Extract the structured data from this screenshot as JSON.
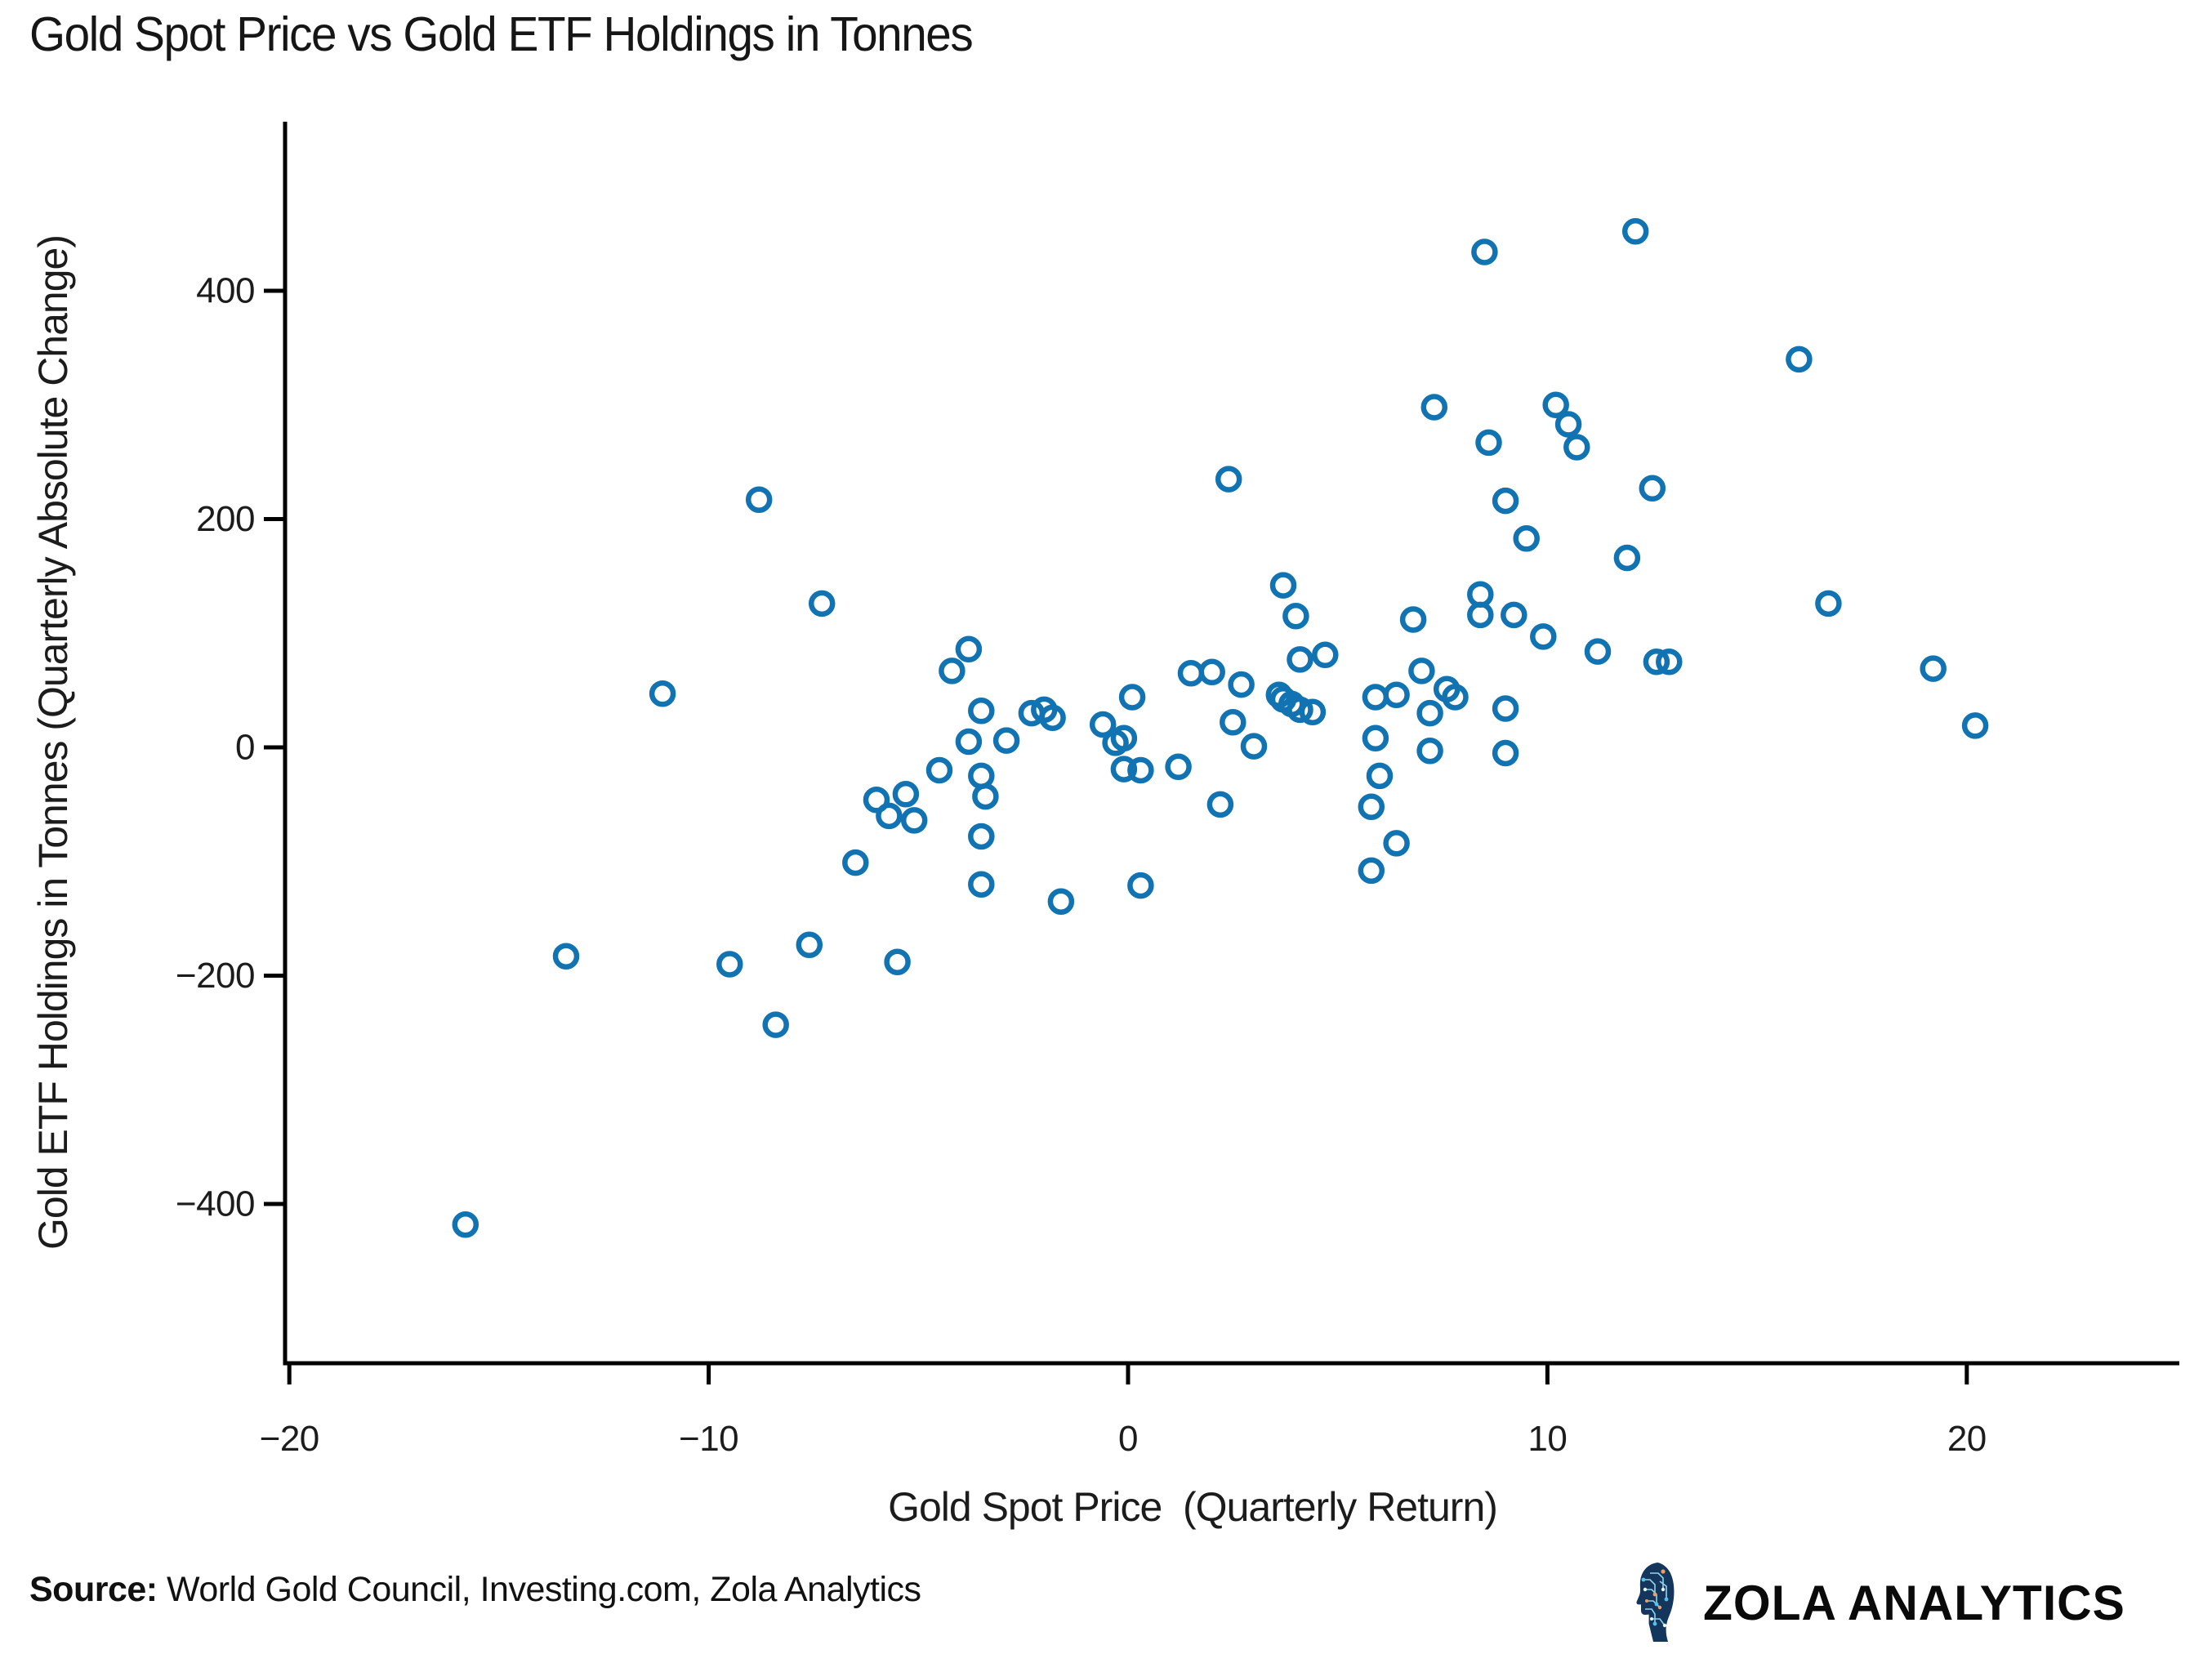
{
  "title": "Gold Spot Price vs Gold ETF Holdings in Tonnes",
  "chart_data": {
    "type": "scatter",
    "title": "Gold Spot Price vs Gold ETF Holdings in Tonnes",
    "xlabel": "Gold Spot Price  (Quarterly Return)",
    "ylabel": "Gold ETF Holdings in Tonnes (Quarterly Absolute Change)",
    "xlim": [
      -20.1,
      25.1
    ],
    "ylim": [
      -540,
      545
    ],
    "xticks": [
      -20,
      -10,
      0,
      10,
      20
    ],
    "yticks": [
      -400,
      -200,
      0,
      200,
      400
    ],
    "grid": false,
    "legend": "none",
    "marker": {
      "shape": "open-circle",
      "color": "#1173b2",
      "radius_px": 13,
      "stroke_px": 6.5
    },
    "axis_color": "#000000",
    "points": [
      [
        -15.8,
        -418
      ],
      [
        -13.4,
        -183
      ],
      [
        -11.1,
        47
      ],
      [
        -9.5,
        -190
      ],
      [
        -8.8,
        217
      ],
      [
        -8.4,
        -243
      ],
      [
        -7.6,
        -173
      ],
      [
        -7.3,
        126
      ],
      [
        -6.5,
        -101
      ],
      [
        -6.0,
        -46
      ],
      [
        -5.7,
        -60
      ],
      [
        -5.5,
        -188
      ],
      [
        -5.3,
        -41
      ],
      [
        -5.1,
        -64
      ],
      [
        -4.5,
        -20
      ],
      [
        -4.2,
        67
      ],
      [
        -3.8,
        86
      ],
      [
        -3.8,
        5
      ],
      [
        -3.5,
        32
      ],
      [
        -3.5,
        -25
      ],
      [
        -3.5,
        -78
      ],
      [
        -3.5,
        -120
      ],
      [
        -3.4,
        -43
      ],
      [
        -2.9,
        6
      ],
      [
        -2.3,
        30
      ],
      [
        -2.0,
        33
      ],
      [
        -1.8,
        26
      ],
      [
        -1.6,
        -135
      ],
      [
        -0.6,
        20
      ],
      [
        -0.3,
        4
      ],
      [
        -0.1,
        8
      ],
      [
        -0.1,
        -19
      ],
      [
        0.1,
        44
      ],
      [
        0.3,
        -20
      ],
      [
        0.3,
        -121
      ],
      [
        1.2,
        -17
      ],
      [
        1.5,
        65
      ],
      [
        2.0,
        66
      ],
      [
        2.2,
        -50
      ],
      [
        2.4,
        235
      ],
      [
        2.5,
        22
      ],
      [
        2.7,
        55
      ],
      [
        3.0,
        1
      ],
      [
        3.6,
        46
      ],
      [
        3.7,
        42
      ],
      [
        3.9,
        38
      ],
      [
        4.1,
        33
      ],
      [
        4.4,
        31
      ],
      [
        4.1,
        77
      ],
      [
        4.7,
        81
      ],
      [
        4.0,
        115
      ],
      [
        3.7,
        142
      ],
      [
        5.8,
        -52
      ],
      [
        5.8,
        -108
      ],
      [
        5.9,
        8
      ],
      [
        5.9,
        44
      ],
      [
        6.0,
        -25
      ],
      [
        6.4,
        46
      ],
      [
        6.4,
        -84
      ],
      [
        6.8,
        112
      ],
      [
        7.0,
        67
      ],
      [
        7.2,
        -3
      ],
      [
        7.2,
        30
      ],
      [
        7.3,
        298
      ],
      [
        7.6,
        51
      ],
      [
        7.8,
        44
      ],
      [
        8.4,
        116
      ],
      [
        8.4,
        134
      ],
      [
        8.5,
        434
      ],
      [
        8.6,
        267
      ],
      [
        9.0,
        216
      ],
      [
        9.0,
        34
      ],
      [
        9.0,
        -5
      ],
      [
        9.2,
        116
      ],
      [
        9.5,
        183
      ],
      [
        9.9,
        97
      ],
      [
        10.2,
        300
      ],
      [
        10.5,
        283
      ],
      [
        10.7,
        263
      ],
      [
        11.2,
        84
      ],
      [
        11.9,
        166
      ],
      [
        12.1,
        452
      ],
      [
        12.5,
        227
      ],
      [
        12.6,
        75
      ],
      [
        12.9,
        75
      ],
      [
        16.0,
        340
      ],
      [
        16.7,
        126
      ],
      [
        19.2,
        69
      ],
      [
        20.2,
        19
      ]
    ]
  },
  "footer": {
    "source_label": "Source:",
    "source_text": " World Gold Council, Investing.com, Zola Analytics",
    "brand": "ZOLA ANALYTICS",
    "brand_icon": "circuit-head-icon",
    "brand_icon_colors": {
      "head": "#14365c",
      "trace": "#9bdcf2",
      "dot_cyan": "#4fc3e8",
      "dot_orange": "#ef9e63"
    }
  }
}
